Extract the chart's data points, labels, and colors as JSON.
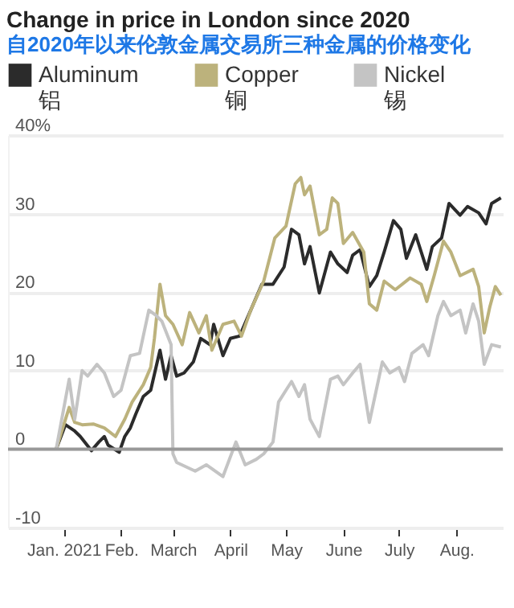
{
  "chart_data": {
    "type": "line",
    "title": "Change in price in London since 2020",
    "subtitle": "自2020年以来伦敦金属交易所三种金属的价格变化",
    "xlim": [
      "2020-12-02",
      "2021-08-26"
    ],
    "xticks": [
      {
        "value": "2021-01-01",
        "label": "Jan. 2021"
      },
      {
        "value": "2021-02-01",
        "label": "Feb."
      },
      {
        "value": "2021-03-01",
        "label": "March"
      },
      {
        "value": "2021-04-01",
        "label": "April"
      },
      {
        "value": "2021-05-01",
        "label": "May"
      },
      {
        "value": "2021-06-01",
        "label": "June"
      },
      {
        "value": "2021-07-01",
        "label": "July"
      },
      {
        "value": "2021-08-01",
        "label": "Aug."
      }
    ],
    "ylim": [
      -10,
      40
    ],
    "yticks": [
      -10,
      0,
      10,
      20,
      30,
      {
        "value": 40,
        "label": "40%"
      }
    ],
    "grid": "y",
    "legend": "top",
    "marker": "none",
    "line_style": "solid",
    "ref_lines": [
      {
        "axis": "y",
        "value": 0,
        "color": "#999999"
      }
    ],
    "series": [
      {
        "name": "Aluminum\n铝",
        "color": "#2b2b2b",
        "x": [
          "2020-12-28",
          "2021-01-02",
          "2021-01-07",
          "2021-01-10",
          "2021-01-16",
          "2021-01-20",
          "2021-01-23",
          "2021-01-25",
          "2021-01-31",
          "2021-02-03",
          "2021-02-06",
          "2021-02-09",
          "2021-02-13",
          "2021-02-17",
          "2021-02-22",
          "2021-02-25",
          "2021-02-28",
          "2021-03-03",
          "2021-03-07",
          "2021-03-12",
          "2021-03-16",
          "2021-03-21",
          "2021-03-23",
          "2021-03-28",
          "2021-04-01",
          "2021-04-06",
          "2021-04-12",
          "2021-04-18",
          "2021-04-24",
          "2021-04-30",
          "2021-05-04",
          "2021-05-08",
          "2021-05-11",
          "2021-05-14",
          "2021-05-19",
          "2021-05-25",
          "2021-05-29",
          "2021-06-03",
          "2021-06-06",
          "2021-06-10",
          "2021-06-15",
          "2021-06-19",
          "2021-06-23",
          "2021-06-28",
          "2021-07-02",
          "2021-07-05",
          "2021-07-10",
          "2021-07-16",
          "2021-07-19",
          "2021-07-24",
          "2021-07-28",
          "2021-08-03",
          "2021-08-07",
          "2021-08-13",
          "2021-08-17",
          "2021-08-20",
          "2021-08-25"
        ],
        "values": [
          0,
          3.1,
          2.3,
          1.6,
          -0.2,
          0.9,
          1.6,
          0.5,
          -0.4,
          1.6,
          2.7,
          4.5,
          6.7,
          7.5,
          12.6,
          8.9,
          11.9,
          9.3,
          9.7,
          11.1,
          14.1,
          13.3,
          15.9,
          11.9,
          14.1,
          14.4,
          17.7,
          21,
          21,
          23.2,
          28,
          27.3,
          23.6,
          25.8,
          19.9,
          25.1,
          23.6,
          22.5,
          24.7,
          25.4,
          20.7,
          22.1,
          25.1,
          29.1,
          28,
          24.3,
          27.3,
          22.9,
          25.8,
          26.9,
          31.3,
          29.8,
          30.9,
          30.1,
          28.7,
          31.3,
          32
        ]
      },
      {
        "name": "Copper\n铜",
        "color": "#bcb27c",
        "x": [
          "2020-12-28",
          "2021-01-04",
          "2021-01-07",
          "2021-01-11",
          "2021-01-17",
          "2021-01-23",
          "2021-01-29",
          "2021-02-03",
          "2021-02-07",
          "2021-02-13",
          "2021-02-17",
          "2021-02-19",
          "2021-02-22",
          "2021-02-25",
          "2021-03-01",
          "2021-03-06",
          "2021-03-10",
          "2021-03-15",
          "2021-03-19",
          "2021-03-22",
          "2021-03-28",
          "2021-04-03",
          "2021-04-07",
          "2021-04-12",
          "2021-04-19",
          "2021-04-25",
          "2021-05-01",
          "2021-05-06",
          "2021-05-09",
          "2021-05-11",
          "2021-05-14",
          "2021-05-19",
          "2021-05-23",
          "2021-05-26",
          "2021-05-29",
          "2021-06-01",
          "2021-06-06",
          "2021-06-12",
          "2021-06-15",
          "2021-06-19",
          "2021-06-23",
          "2021-06-29",
          "2021-07-07",
          "2021-07-13",
          "2021-07-16",
          "2021-07-20",
          "2021-07-25",
          "2021-07-29",
          "2021-08-03",
          "2021-08-10",
          "2021-08-13",
          "2021-08-16",
          "2021-08-19",
          "2021-08-22",
          "2021-08-25"
        ],
        "values": [
          0,
          5.3,
          3.4,
          3.1,
          3.2,
          2.7,
          1.6,
          3.8,
          6,
          8.2,
          10.4,
          14.1,
          21,
          17,
          15.9,
          13.3,
          17.4,
          14.8,
          17,
          12.6,
          15.9,
          16.3,
          14.4,
          17.7,
          21.4,
          26.9,
          28.4,
          33.8,
          34.6,
          32.4,
          33.5,
          27.3,
          28,
          32,
          31.3,
          26.2,
          27.6,
          25.1,
          18.5,
          17.7,
          21.4,
          20.3,
          21.8,
          21,
          18.8,
          22.1,
          26.5,
          25.1,
          22.1,
          22.9,
          20.7,
          14.8,
          18.1,
          20.7,
          19.6
        ]
      },
      {
        "name": "Nickel\n锡",
        "color": "#c4c4c4",
        "x": [
          "2020-12-28",
          "2021-01-04",
          "2021-01-07",
          "2021-01-11",
          "2021-01-14",
          "2021-01-19",
          "2021-01-23",
          "2021-01-28",
          "2021-02-01",
          "2021-02-06",
          "2021-02-11",
          "2021-02-16",
          "2021-02-20",
          "2021-02-23",
          "2021-02-28",
          "2021-03-01",
          "2021-03-03",
          "2021-03-13",
          "2021-03-19",
          "2021-03-28",
          "2021-04-04",
          "2021-04-09",
          "2021-04-15",
          "2021-04-19",
          "2021-04-24",
          "2021-04-27",
          "2021-05-01",
          "2021-05-04",
          "2021-05-08",
          "2021-05-11",
          "2021-05-14",
          "2021-05-19",
          "2021-05-25",
          "2021-05-29",
          "2021-06-01",
          "2021-06-06",
          "2021-06-10",
          "2021-06-15",
          "2021-06-18",
          "2021-06-22",
          "2021-06-26",
          "2021-07-01",
          "2021-07-04",
          "2021-07-08",
          "2021-07-14",
          "2021-07-17",
          "2021-07-22",
          "2021-07-25",
          "2021-07-29",
          "2021-08-03",
          "2021-08-06",
          "2021-08-10",
          "2021-08-13",
          "2021-08-16",
          "2021-08-20",
          "2021-08-25"
        ],
        "values": [
          0,
          8.9,
          3.8,
          10,
          9.3,
          10.8,
          9.7,
          6.7,
          7.5,
          11.9,
          12.2,
          17.7,
          17,
          16.3,
          13.3,
          -0.6,
          -1.7,
          -2.8,
          -2,
          -3.5,
          0.9,
          -2,
          -1.3,
          -0.6,
          0.9,
          6,
          7.5,
          8.6,
          6.7,
          8.2,
          3.8,
          1.6,
          8.9,
          9.3,
          8.2,
          9.7,
          10.8,
          3.4,
          6.7,
          11.1,
          9.7,
          10.4,
          8.6,
          12.2,
          13.3,
          11.9,
          17,
          18.8,
          17,
          17.7,
          14.8,
          18.5,
          16.3,
          10.8,
          13.3,
          13
        ]
      }
    ]
  }
}
